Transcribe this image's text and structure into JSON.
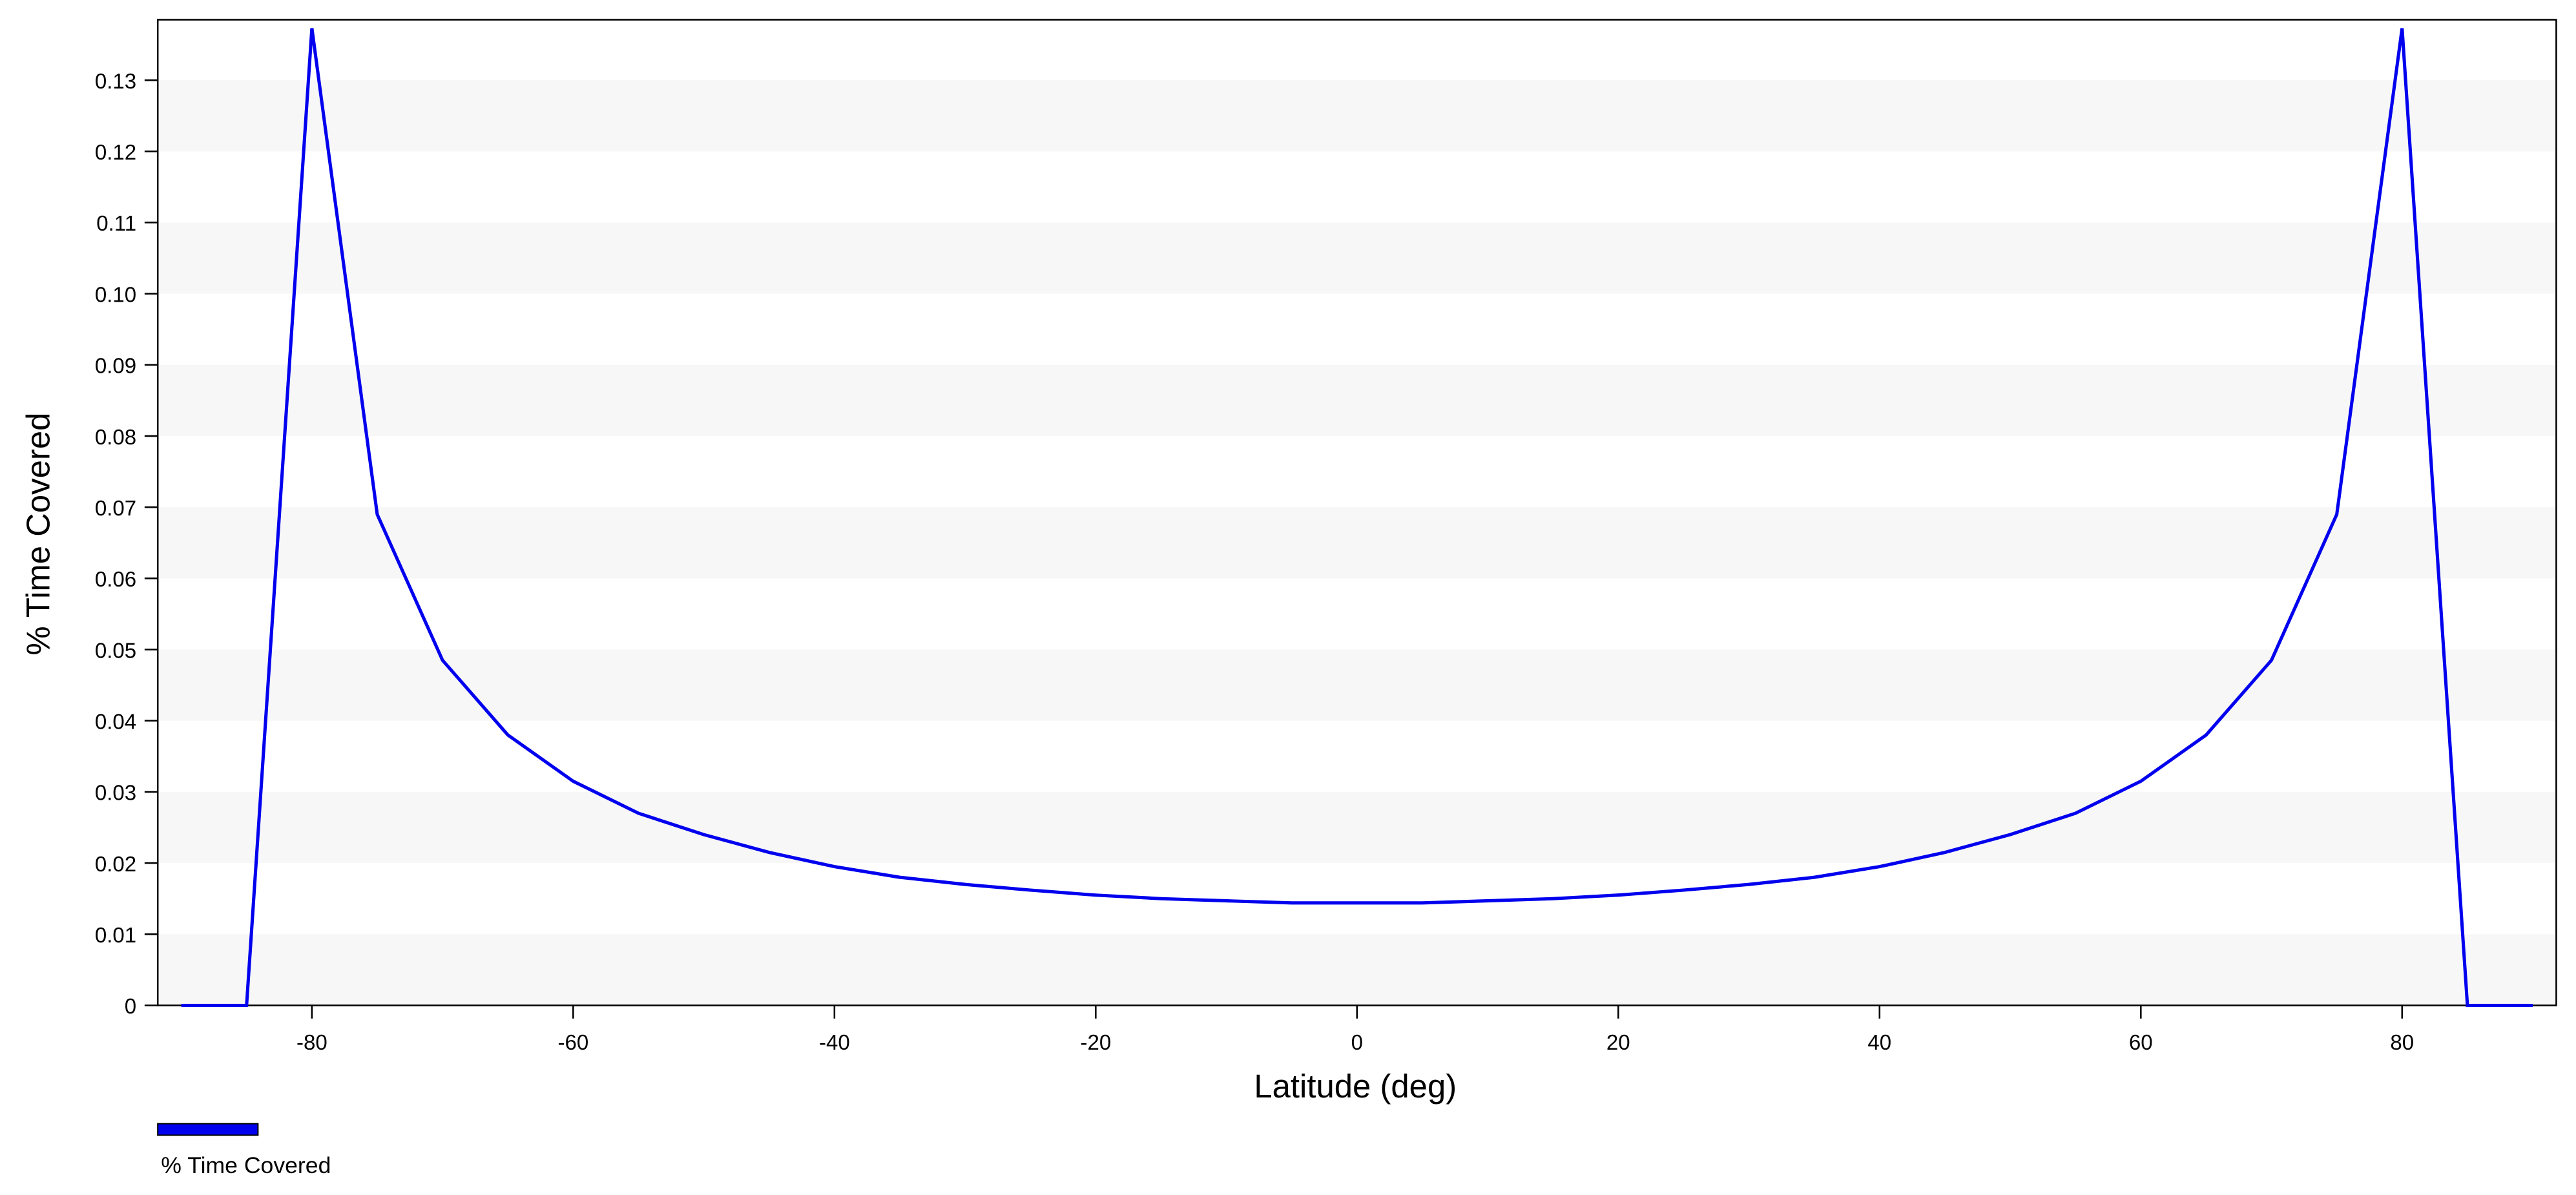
{
  "chart_data": {
    "type": "line",
    "xlabel": "Latitude (deg)",
    "ylabel": "% Time Covered",
    "x": [
      -90,
      -85,
      -80,
      -75,
      -70,
      -65,
      -60,
      -55,
      -50,
      -45,
      -40,
      -35,
      -30,
      -25,
      -20,
      -15,
      -10,
      -5,
      0,
      5,
      10,
      15,
      20,
      25,
      30,
      35,
      40,
      45,
      50,
      55,
      60,
      65,
      70,
      75,
      80,
      85,
      90
    ],
    "series": [
      {
        "name": "% Time Covered",
        "color": "#0000ee",
        "values": [
          0,
          0,
          0.1373,
          0.069,
          0.0485,
          0.038,
          0.0315,
          0.027,
          0.024,
          0.0215,
          0.0195,
          0.018,
          0.017,
          0.0162,
          0.0155,
          0.015,
          0.0147,
          0.0144,
          0.0144,
          0.0144,
          0.0147,
          0.015,
          0.0155,
          0.0162,
          0.017,
          0.018,
          0.0195,
          0.0215,
          0.024,
          0.027,
          0.0315,
          0.038,
          0.0485,
          0.069,
          0.1373,
          0,
          0
        ]
      }
    ],
    "xlim": [
      -91.8,
      91.8
    ],
    "xticks": [
      -80,
      -60,
      -40,
      -20,
      0,
      20,
      40,
      60,
      80
    ],
    "ylim": [
      0,
      0.1385
    ],
    "yticks": [
      0,
      0.01,
      0.02,
      0.03,
      0.04,
      0.05,
      0.06,
      0.07,
      0.08,
      0.09,
      {
        "value": 0.1,
        "label": "0.10"
      },
      0.11,
      0.12,
      0.13
    ],
    "grid_bands": true,
    "legend": "bottom-left"
  }
}
